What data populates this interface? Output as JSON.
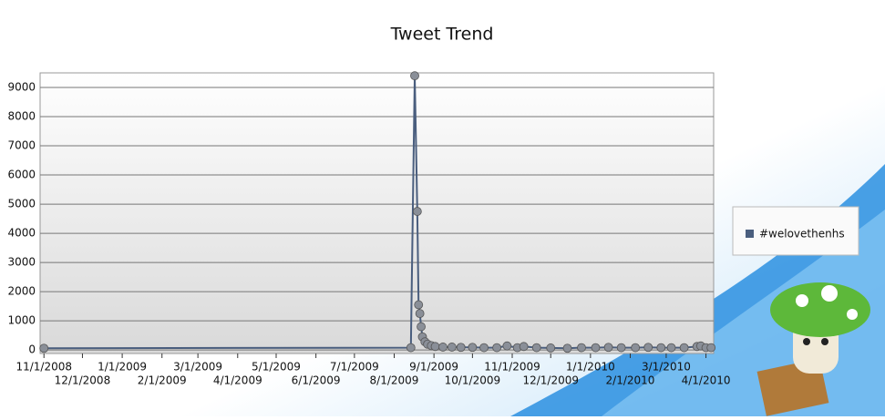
{
  "chart_data": {
    "type": "line",
    "title": "Tweet Trend",
    "x": [
      "11/1/2008",
      "8/14/2009",
      "8/17/2009",
      "8/19/2009",
      "8/20/2009",
      "8/21/2009",
      "8/22/2009",
      "8/23/2009",
      "8/25/2009",
      "8/27/2009",
      "8/30/2009",
      "9/2/2009",
      "9/8/2009",
      "9/15/2009",
      "9/22/2009",
      "10/1/2009",
      "10/10/2009",
      "10/20/2009",
      "10/28/2009",
      "11/5/2009",
      "11/10/2009",
      "11/20/2009",
      "12/1/2009",
      "12/14/2009",
      "12/25/2009",
      "1/5/2010",
      "1/15/2010",
      "1/25/2010",
      "2/5/2010",
      "2/15/2010",
      "2/25/2010",
      "3/5/2010",
      "3/15/2010",
      "3/25/2010",
      "3/28/2010",
      "4/1/2010",
      "4/5/2010"
    ],
    "series": [
      {
        "name": "#welovethenhs",
        "color": "#4a5e7e",
        "values": [
          60,
          80,
          9400,
          4750,
          1550,
          1250,
          800,
          450,
          280,
          200,
          150,
          120,
          100,
          100,
          90,
          90,
          80,
          80,
          140,
          80,
          120,
          80,
          70,
          60,
          80,
          80,
          90,
          80,
          80,
          90,
          80,
          80,
          80,
          120,
          140,
          80,
          80
        ]
      }
    ],
    "xlim": [
      "10/29/2008",
      "4/7/2010"
    ],
    "xticks": [
      "11/1/2008",
      "12/1/2008",
      "1/1/2009",
      "2/1/2009",
      "3/1/2009",
      "4/1/2009",
      "5/1/2009",
      "6/1/2009",
      "7/1/2009",
      "8/1/2009",
      "9/1/2009",
      "10/1/2009",
      "11/1/2009",
      "12/1/2009",
      "1/1/2010",
      "2/1/2010",
      "3/1/2010",
      "4/1/2010"
    ],
    "ylim": [
      -120,
      9500
    ],
    "yticks": [
      0,
      1000,
      2000,
      3000,
      4000,
      5000,
      6000,
      7000,
      8000,
      9000
    ],
    "grid": true,
    "legend": "right"
  }
}
